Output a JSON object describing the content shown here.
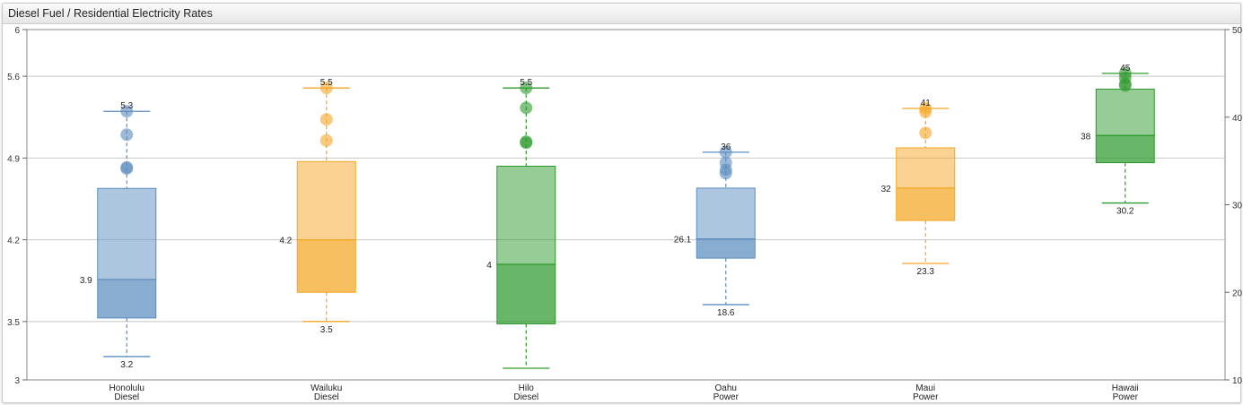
{
  "window": {
    "title": "Diesel Fuel / Residential Electricity Rates"
  },
  "chart_data": {
    "type": "boxplot",
    "title": "Diesel Fuel / Residential Electricity Rates",
    "categories": [
      [
        "Honolulu",
        "Diesel"
      ],
      [
        "Wailuku",
        "Diesel"
      ],
      [
        "Hilo",
        "Diesel"
      ],
      [
        "Oahu",
        "Power"
      ],
      [
        "Maui",
        "Power"
      ],
      [
        "Hawaii",
        "Power"
      ]
    ],
    "y_left": {
      "ticks": [
        "3",
        "3.5",
        "4.2",
        "4.9",
        "5.6",
        "6"
      ],
      "range": [
        3,
        6
      ]
    },
    "y_right": {
      "ticks": [
        "10",
        "20",
        "30",
        "40",
        "50"
      ],
      "range": [
        10,
        50
      ]
    },
    "grid": true,
    "boxes": [
      {
        "axis": "left",
        "color": "#5b8dbf",
        "low": 3.2,
        "q1": 3.53,
        "median": 3.86,
        "q3": 4.64,
        "high": 5.3,
        "outliers": [
          5.3,
          5.1,
          4.82,
          4.81
        ],
        "labels": {
          "low": "3.2",
          "median": "3.9",
          "high": "5.3"
        }
      },
      {
        "axis": "left",
        "color": "#f5a623",
        "low": 3.5,
        "q1": 3.75,
        "median": 4.2,
        "q3": 4.87,
        "high": 5.5,
        "outliers": [
          5.5,
          5.23,
          5.05
        ],
        "labels": {
          "low": "3.5",
          "median": "4.2",
          "high": "5.5"
        }
      },
      {
        "axis": "left",
        "color": "#2e9a2e",
        "low": 3.1,
        "q1": 3.48,
        "median": 3.99,
        "q3": 4.83,
        "high": 5.5,
        "outliers": [
          5.5,
          5.33,
          5.04,
          5.03
        ],
        "labels": {
          "low": "",
          "median": "4",
          "high": "5.5"
        }
      },
      {
        "axis": "right",
        "color": "#5b8dbf",
        "low": 18.6,
        "q1": 23.9,
        "median": 26.1,
        "q3": 31.9,
        "high": 36,
        "outliers": [
          36,
          34.8,
          34.0,
          33.6
        ],
        "labels": {
          "low": "18.6",
          "median": "26.1",
          "high": "36"
        }
      },
      {
        "axis": "right",
        "color": "#f5a623",
        "low": 23.3,
        "q1": 28.2,
        "median": 31.9,
        "q3": 36.5,
        "high": 41,
        "outliers": [
          41,
          40.6,
          38.2
        ],
        "labels": {
          "low": "23.3",
          "median": "32",
          "high": "41"
        }
      },
      {
        "axis": "right",
        "color": "#2e9a2e",
        "low": 30.2,
        "q1": 34.8,
        "median": 37.9,
        "q3": 43.2,
        "high": 45,
        "outliers": [
          45,
          44.5,
          43.8,
          43.6
        ],
        "labels": {
          "low": "30.2",
          "median": "38",
          "high": "45"
        }
      }
    ]
  }
}
